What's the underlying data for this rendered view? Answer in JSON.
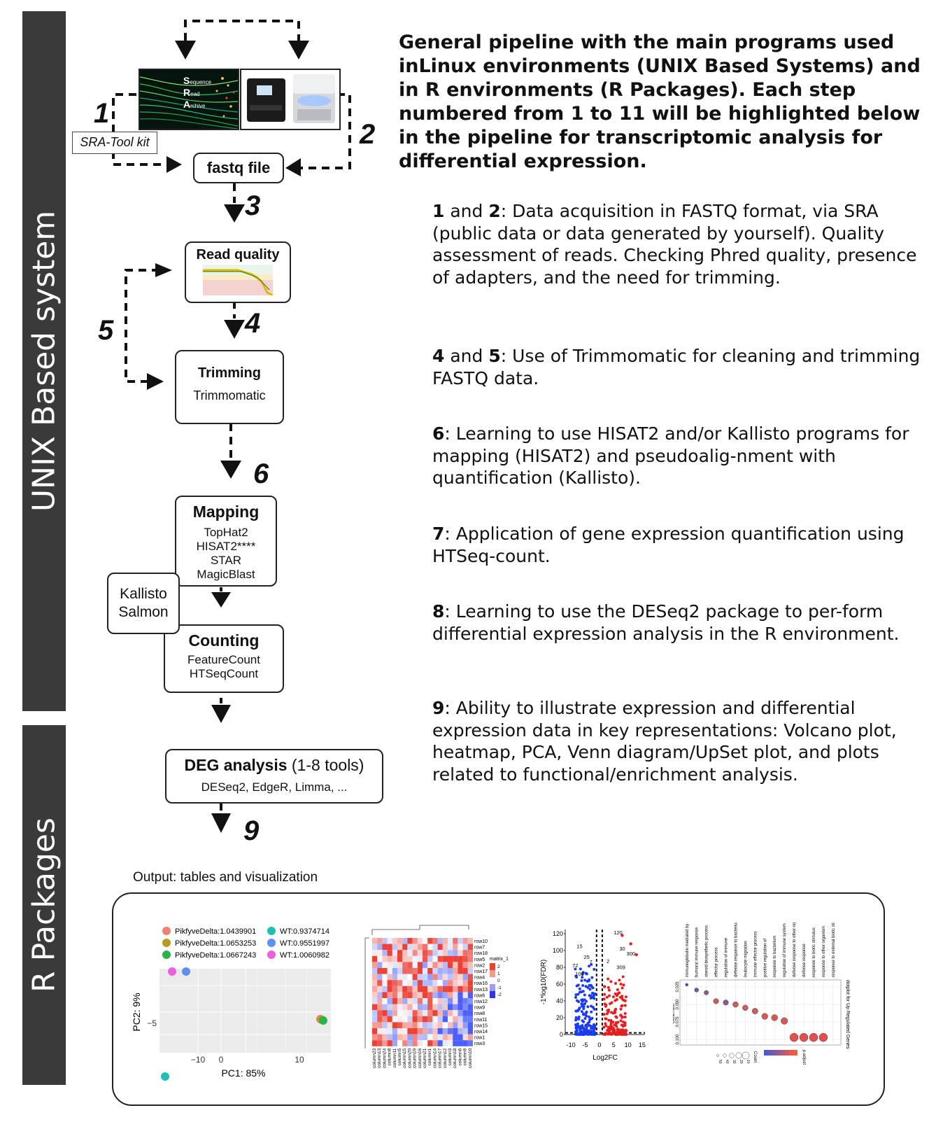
{
  "sidebar": {
    "unix_label": "UNIX Based system",
    "r_label": "R Packages"
  },
  "title": "General pipeline with the main programs used inLinux environments (UNIX Based Systems) and in R environments (R Packages). Each step numbered from 1 to 11 will be highlighted below in the pipeline for transcriptomic analysis for differential expression.",
  "paragraphs": [
    {
      "bold": "1",
      "mid": " and ",
      "bold2": "2",
      "text": ": Data acquisition in FASTQ format, via SRA (public data or data generated by yourself). Quality assessment of reads. Checking Phred quality, presence of adapters, and the need for trimming."
    },
    {
      "bold": "4",
      "mid": " and ",
      "bold2": "5",
      "text": ": Use of Trimmomatic for cleaning and trimming FASTQ data."
    },
    {
      "bold": "6",
      "mid": "",
      "bold2": "",
      "text": ": Learning to use HISAT2 and/or Kallisto programs for mapping (HISAT2) and pseudoalig-nment with quantification (Kallisto)."
    },
    {
      "bold": "7",
      "mid": "",
      "bold2": "",
      "text": ": Application of gene expression quantification using HTSeq-count."
    },
    {
      "bold": "8",
      "mid": "",
      "bold2": "",
      "text": ": Learning to use the DESeq2 package to per-form differential expression analysis in the R environment."
    },
    {
      "bold": "9",
      "mid": "",
      "bold2": "",
      "text": ": Ability to illustrate expression and differential expression data in key representations: Volcano plot, heatmap, PCA, Venn diagram/UpSet plot, and plots related to functional/enrichment analysis."
    }
  ],
  "pipeline": {
    "sra_letters": [
      "S",
      "R",
      "A"
    ],
    "sra_words": [
      "equence",
      "ead",
      "rchive"
    ],
    "sra_toolkit": "SRA-Tool kit",
    "fastq": "fastq file",
    "read_quality": "Read quality",
    "trimming_title": "Trimming",
    "trimming_tool": "Trimmomatic",
    "mapping_title": "Mapping",
    "mapping_tools": [
      "TopHat2",
      "HISAT2****",
      "STAR",
      "MagicBlast"
    ],
    "pseudo_tools": [
      "Kallisto",
      "Salmon"
    ],
    "counting_title": "Counting",
    "counting_tools": [
      "FeatureCount",
      "HTSeqCount"
    ],
    "deg_title": "DEG analysis",
    "deg_title_suffix": " (1-8 tools)",
    "deg_tools": "DESeq2, EdgeR, Limma, ...",
    "output_label": "Output: tables and visualization"
  },
  "step_numbers": [
    "1",
    "2",
    "3",
    "4",
    "5",
    "6",
    "9"
  ],
  "pca": {
    "xlabel": "PC1: 85%",
    "ylabel": "PC2: 9%",
    "xticks": [
      "−10",
      "0",
      "10"
    ],
    "yticks": [
      "−5"
    ],
    "legend": [
      {
        "label": "PikfyveDelta:1.0439901",
        "color": "#f07f74"
      },
      {
        "label": "PikfyveDelta:1.0653253",
        "color": "#b99a1e"
      },
      {
        "label": "PikfyveDelta:1.0667243",
        "color": "#2bb34a"
      },
      {
        "label": "WT:0.9374714",
        "color": "#1fbfb8"
      },
      {
        "label": "WT:0.9551997",
        "color": "#5f8ff2"
      },
      {
        "label": "WT:1.0060982",
        "color": "#f05ee0"
      }
    ]
  },
  "heatmap": {
    "legend_title": "matrix_1",
    "legend_ticks": [
      "2",
      "1",
      "0",
      "-1",
      "-2"
    ],
    "rows": [
      "row10",
      "row7",
      "row18",
      "row5",
      "row2",
      "row17",
      "row4",
      "row16",
      "row13",
      "row6",
      "row12",
      "row9",
      "row8",
      "row11",
      "row15",
      "row14",
      "row1",
      "row3"
    ],
    "columns": [
      "column23",
      "column13",
      "column24",
      "column8",
      "column11",
      "column5",
      "column15",
      "column20",
      "column19",
      "column16",
      "column21",
      "column1",
      "column14",
      "column17",
      "column12",
      "column3",
      "column18",
      "column6",
      "column9",
      "column10"
    ]
  },
  "volcano": {
    "xlabel": "Log2FC",
    "ylabel": "-1*log10(FDR)",
    "xticks": [
      "-10",
      "-5",
      "0",
      "5",
      "10",
      "15"
    ],
    "yticks": [
      "0",
      "20",
      "40",
      "60",
      "80",
      "100",
      "120"
    ],
    "labels": [
      "15",
      "25",
      "7",
      "72",
      "103",
      "120",
      "30",
      "300",
      "2",
      "309"
    ]
  },
  "dotplot": {
    "title": "dotplot for Up Regulated Genes",
    "axis_label": "GeneRatio",
    "ticks": [
      "0.025",
      "0.050",
      "0.075",
      "0.100"
    ],
    "terms": [
      "immunoglobulin mediated by circulating",
      "humoral immune response",
      "steroid biosynthetic process",
      "effector process",
      "regulation of immune",
      "defense response to bacterium",
      "leukocyte migration",
      "immune effector process",
      "positive regulation of",
      "response to bacterium",
      "regulation of immune system process",
      "defense response to other organism",
      "defense response",
      "response to biotic stimulus",
      "response to other organism",
      "response to external biotic stimulus"
    ],
    "legend_count": "Count",
    "legend_count_values": [
      "10",
      "20",
      "30",
      "40",
      "50"
    ],
    "legend_padj": "p.adjust"
  }
}
